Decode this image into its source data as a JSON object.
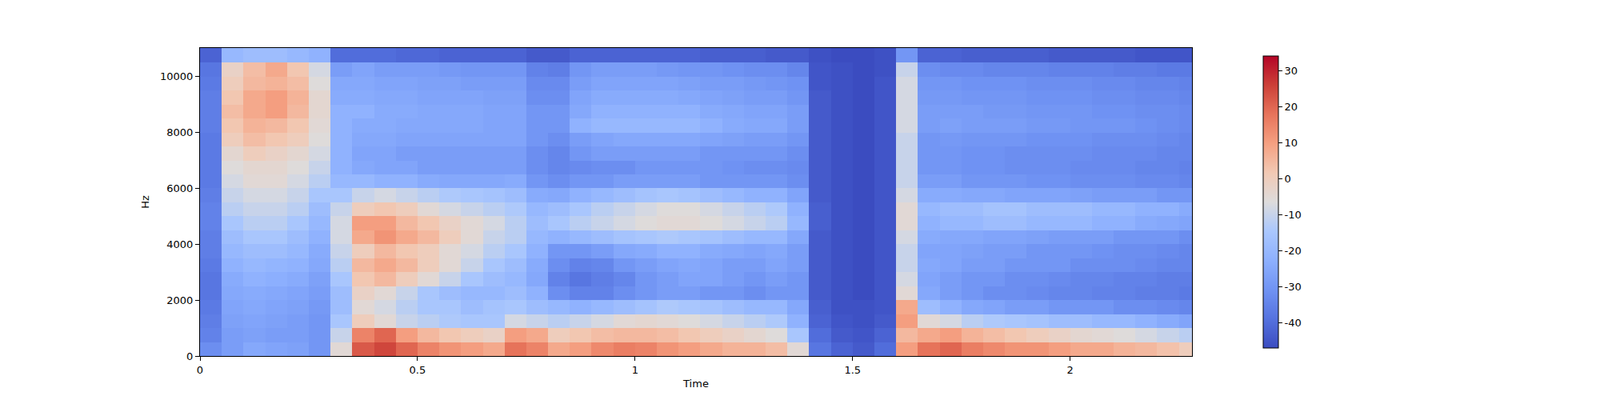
{
  "chart_data": {
    "type": "heatmap",
    "x_label": "Time",
    "y_label": "Hz",
    "xlim": [
      0,
      2.28
    ],
    "xticks": [
      0,
      0.5,
      1,
      1.5,
      2
    ],
    "ylim": [
      0,
      11025
    ],
    "yticks": [
      0,
      2000,
      4000,
      6000,
      8000,
      10000
    ],
    "zlim": [
      -47,
      34
    ],
    "zticks": [
      -40,
      -30,
      -20,
      -10,
      0,
      10,
      20,
      30
    ],
    "x": [
      0,
      0.05,
      0.1,
      0.15,
      0.2,
      0.25,
      0.3,
      0.35,
      0.4,
      0.45,
      0.5,
      0.55,
      0.6,
      0.65,
      0.7,
      0.75,
      0.8,
      0.85,
      0.9,
      0.95,
      1,
      1.05,
      1.1,
      1.15,
      1.2,
      1.25,
      1.3,
      1.35,
      1.4,
      1.45,
      1.5,
      1.55,
      1.6,
      1.65,
      1.7,
      1.75,
      1.8,
      1.85,
      1.9,
      1.95,
      2,
      2.05,
      2.1,
      2.15,
      2.2,
      2.25,
      2.3
    ],
    "y": [
      0,
      500,
      1000,
      1500,
      2000,
      2500,
      3000,
      3500,
      4000,
      4500,
      5000,
      5500,
      6000,
      6500,
      7000,
      7500,
      8000,
      8500,
      9000,
      9500,
      10000,
      10500,
      11025
    ],
    "z": [
      [
        -32,
        -28,
        -25,
        -26,
        -27,
        -30,
        -5,
        22,
        25,
        20,
        15,
        12,
        10,
        8,
        18,
        15,
        8,
        10,
        14,
        16,
        15,
        12,
        10,
        8,
        6,
        6,
        4,
        -5,
        -38,
        -42,
        -44,
        -40,
        10,
        18,
        20,
        16,
        14,
        12,
        12,
        10,
        8,
        8,
        6,
        5,
        3,
        0
      ],
      [
        -35,
        -28,
        -27,
        -28,
        -28,
        -30,
        -10,
        15,
        20,
        10,
        5,
        2,
        0,
        -2,
        10,
        8,
        0,
        2,
        4,
        5,
        5,
        4,
        2,
        0,
        -2,
        -4,
        -6,
        -15,
        -40,
        -44,
        -45,
        -42,
        5,
        8,
        10,
        6,
        4,
        2,
        0,
        -2,
        -4,
        -5,
        -6,
        -8,
        -10,
        -12
      ],
      [
        -36,
        -27,
        -26,
        -27,
        -28,
        -30,
        -15,
        0,
        -5,
        -10,
        -12,
        -14,
        -15,
        -15,
        -8,
        -10,
        -12,
        -10,
        -8,
        -5,
        -4,
        -5,
        -6,
        -8,
        -10,
        -12,
        -14,
        -22,
        -42,
        -45,
        -46,
        -44,
        10,
        -5,
        -8,
        -12,
        -14,
        -15,
        -16,
        -18,
        -18,
        -20,
        -20,
        -22,
        -24,
        -26
      ],
      [
        -37,
        -26,
        -25,
        -26,
        -27,
        -29,
        -18,
        -5,
        -8,
        -12,
        -15,
        -15,
        -18,
        -16,
        -15,
        -18,
        -20,
        -22,
        -20,
        -18,
        -16,
        -14,
        -15,
        -16,
        -18,
        -20,
        -20,
        -25,
        -43,
        -46,
        -46,
        -45,
        8,
        -18,
        -22,
        -25,
        -26,
        -28,
        -28,
        -30,
        -30,
        -30,
        -32,
        -32,
        -33,
        -34
      ],
      [
        -38,
        -25,
        -24,
        -25,
        -26,
        -28,
        -18,
        -2,
        -5,
        -10,
        -15,
        -18,
        -20,
        -20,
        -18,
        -22,
        -32,
        -35,
        -35,
        -32,
        -30,
        -28,
        -28,
        -30,
        -30,
        -32,
        -30,
        -30,
        -44,
        -46,
        -47,
        -45,
        -5,
        -25,
        -28,
        -30,
        -32,
        -32,
        -33,
        -34,
        -34,
        -35,
        -35,
        -36,
        -36,
        -37
      ],
      [
        -38,
        -24,
        -22,
        -23,
        -24,
        -27,
        -15,
        2,
        5,
        0,
        -5,
        -10,
        -15,
        -18,
        -20,
        -25,
        -35,
        -38,
        -36,
        -34,
        -30,
        -28,
        -26,
        -26,
        -28,
        -30,
        -28,
        -30,
        -44,
        -46,
        -47,
        -45,
        -8,
        -26,
        -28,
        -30,
        -30,
        -32,
        -32,
        -33,
        -34,
        -34,
        -35,
        -35,
        -36,
        -36
      ],
      [
        -37,
        -22,
        -20,
        -21,
        -22,
        -25,
        -12,
        5,
        8,
        5,
        0,
        -5,
        -10,
        -15,
        -18,
        -24,
        -32,
        -35,
        -34,
        -30,
        -28,
        -26,
        -25,
        -26,
        -28,
        -28,
        -26,
        -28,
        -44,
        -46,
        -47,
        -45,
        -10,
        -25,
        -26,
        -28,
        -28,
        -30,
        -30,
        -30,
        -32,
        -32,
        -32,
        -33,
        -34,
        -34
      ],
      [
        -36,
        -20,
        -18,
        -18,
        -20,
        -24,
        -10,
        0,
        5,
        2,
        0,
        -5,
        -8,
        -12,
        -15,
        -22,
        -30,
        -30,
        -28,
        -25,
        -24,
        -22,
        -22,
        -24,
        -25,
        -26,
        -25,
        -28,
        -44,
        -46,
        -47,
        -45,
        -10,
        -26,
        -26,
        -27,
        -28,
        -28,
        -30,
        -30,
        -30,
        -31,
        -32,
        -32,
        -33,
        -34
      ],
      [
        -36,
        -18,
        -15,
        -15,
        -18,
        -22,
        -8,
        8,
        12,
        8,
        5,
        0,
        -5,
        -10,
        -12,
        -20,
        -22,
        -20,
        -18,
        -16,
        -15,
        -14,
        -15,
        -16,
        -18,
        -20,
        -20,
        -25,
        -44,
        -46,
        -47,
        -45,
        -8,
        -24,
        -25,
        -25,
        -26,
        -26,
        -27,
        -28,
        -28,
        -28,
        -30,
        -30,
        -30,
        -32
      ],
      [
        -35,
        -15,
        -12,
        -12,
        -15,
        -20,
        -8,
        10,
        10,
        5,
        2,
        -2,
        -5,
        -8,
        -12,
        -18,
        -15,
        -12,
        -10,
        -8,
        -6,
        -5,
        -5,
        -6,
        -8,
        -10,
        -12,
        -20,
        -43,
        -46,
        -47,
        -45,
        -5,
        -22,
        -20,
        -20,
        -18,
        -18,
        -20,
        -20,
        -20,
        -22,
        -22,
        -24,
        -25,
        -26
      ],
      [
        -35,
        -12,
        -10,
        -10,
        -12,
        -18,
        -10,
        0,
        2,
        0,
        -5,
        -8,
        -10,
        -12,
        -14,
        -20,
        -18,
        -15,
        -12,
        -10,
        -8,
        -6,
        -6,
        -8,
        -10,
        -12,
        -14,
        -22,
        -43,
        -46,
        -47,
        -45,
        -5,
        -20,
        -18,
        -18,
        -16,
        -16,
        -18,
        -18,
        -18,
        -20,
        -20,
        -22,
        -22,
        -24
      ],
      [
        -36,
        -10,
        -8,
        -8,
        -10,
        -15,
        -15,
        -10,
        -8,
        -10,
        -12,
        -14,
        -15,
        -16,
        -18,
        -24,
        -25,
        -22,
        -20,
        -18,
        -16,
        -15,
        -16,
        -18,
        -20,
        -22,
        -22,
        -26,
        -44,
        -46,
        -47,
        -45,
        -8,
        -24,
        -24,
        -25,
        -25,
        -26,
        -26,
        -26,
        -27,
        -28,
        -28,
        -28,
        -30,
        -30
      ],
      [
        -37,
        -8,
        -5,
        -5,
        -8,
        -12,
        -20,
        -20,
        -22,
        -22,
        -24,
        -25,
        -25,
        -25,
        -24,
        -30,
        -32,
        -30,
        -30,
        -28,
        -28,
        -28,
        -28,
        -30,
        -30,
        -30,
        -30,
        -32,
        -44,
        -46,
        -47,
        -45,
        -10,
        -28,
        -28,
        -30,
        -30,
        -30,
        -31,
        -31,
        -32,
        -32,
        -32,
        -33,
        -33,
        -34
      ],
      [
        -37,
        -6,
        -4,
        -4,
        -6,
        -10,
        -22,
        -25,
        -26,
        -26,
        -28,
        -28,
        -28,
        -28,
        -28,
        -32,
        -34,
        -33,
        -32,
        -32,
        -30,
        -30,
        -30,
        -30,
        -31,
        -32,
        -32,
        -33,
        -44,
        -46,
        -47,
        -45,
        -10,
        -30,
        -30,
        -31,
        -31,
        -32,
        -32,
        -32,
        -33,
        -33,
        -33,
        -34,
        -34,
        -35
      ],
      [
        -37,
        -4,
        0,
        -2,
        -4,
        -8,
        -22,
        -26,
        -26,
        -28,
        -28,
        -28,
        -28,
        -28,
        -28,
        -32,
        -34,
        -30,
        -28,
        -28,
        -28,
        -28,
        -28,
        -30,
        -30,
        -30,
        -30,
        -32,
        -44,
        -46,
        -47,
        -45,
        -10,
        -30,
        -30,
        -31,
        -31,
        -32,
        -32,
        -32,
        -32,
        -33,
        -33,
        -33,
        -34,
        -34
      ],
      [
        -37,
        0,
        4,
        2,
        0,
        -6,
        -22,
        -25,
        -25,
        -26,
        -26,
        -26,
        -26,
        -26,
        -26,
        -30,
        -32,
        -28,
        -26,
        -25,
        -25,
        -25,
        -25,
        -26,
        -27,
        -28,
        -28,
        -30,
        -44,
        -46,
        -47,
        -45,
        -10,
        -30,
        -29,
        -30,
        -30,
        -30,
        -31,
        -31,
        -31,
        -32,
        -32,
        -32,
        -33,
        -34
      ],
      [
        -36,
        2,
        6,
        5,
        2,
        -5,
        -22,
        -24,
        -24,
        -25,
        -25,
        -25,
        -25,
        -26,
        -26,
        -30,
        -30,
        -22,
        -20,
        -20,
        -20,
        -20,
        -20,
        -22,
        -24,
        -25,
        -25,
        -28,
        -44,
        -46,
        -47,
        -45,
        -8,
        -28,
        -27,
        -28,
        -28,
        -28,
        -29,
        -29,
        -30,
        -30,
        -30,
        -31,
        -32,
        -33
      ],
      [
        -36,
        4,
        8,
        10,
        5,
        -4,
        -22,
        -22,
        -24,
        -24,
        -25,
        -25,
        -25,
        -26,
        -26,
        -30,
        -30,
        -25,
        -22,
        -22,
        -22,
        -22,
        -22,
        -24,
        -25,
        -26,
        -26,
        -28,
        -44,
        -46,
        -47,
        -45,
        -8,
        -28,
        -28,
        -28,
        -29,
        -29,
        -30,
        -30,
        -30,
        -31,
        -31,
        -32,
        -32,
        -33
      ],
      [
        -36,
        2,
        8,
        10,
        6,
        -4,
        -24,
        -24,
        -25,
        -25,
        -26,
        -26,
        -26,
        -27,
        -27,
        -32,
        -32,
        -26,
        -24,
        -24,
        -24,
        -24,
        -25,
        -26,
        -27,
        -28,
        -28,
        -30,
        -44,
        -46,
        -47,
        -45,
        -8,
        -29,
        -29,
        -30,
        -30,
        -30,
        -31,
        -31,
        -31,
        -32,
        -32,
        -33,
        -33,
        -34
      ],
      [
        -37,
        0,
        5,
        6,
        4,
        -6,
        -25,
        -25,
        -26,
        -26,
        -27,
        -27,
        -28,
        -28,
        -28,
        -33,
        -33,
        -28,
        -26,
        -26,
        -26,
        -26,
        -27,
        -28,
        -28,
        -29,
        -30,
        -31,
        -45,
        -46,
        -47,
        -45,
        -8,
        -30,
        -30,
        -31,
        -31,
        -31,
        -32,
        -32,
        -32,
        -33,
        -33,
        -34,
        -34,
        -35
      ],
      [
        -38,
        -2,
        4,
        8,
        2,
        -8,
        -28,
        -26,
        -28,
        -28,
        -28,
        -29,
        -30,
        -30,
        -30,
        -35,
        -36,
        -30,
        -28,
        -28,
        -28,
        -29,
        -30,
        -30,
        -31,
        -32,
        -32,
        -34,
        -45,
        -46,
        -47,
        -46,
        -10,
        -32,
        -33,
        -33,
        -34,
        -34,
        -34,
        -35,
        -35,
        -35,
        -36,
        -36,
        -37,
        -37
      ],
      [
        -42,
        -20,
        -18,
        -18,
        -20,
        -22,
        -40,
        -40,
        -40,
        -41,
        -41,
        -42,
        -42,
        -42,
        -42,
        -44,
        -44,
        -42,
        -42,
        -42,
        -42,
        -42,
        -42,
        -43,
        -43,
        -43,
        -44,
        -44,
        -46,
        -47,
        -47,
        -46,
        -30,
        -42,
        -42,
        -43,
        -43,
        -43,
        -43,
        -44,
        -44,
        -44,
        -44,
        -45,
        -45,
        -45
      ]
    ]
  }
}
